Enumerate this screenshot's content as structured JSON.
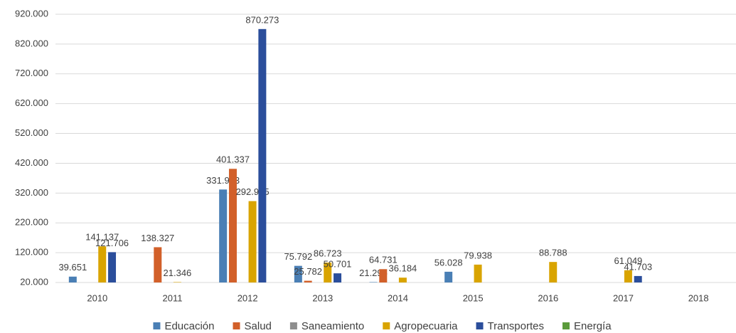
{
  "chart_data": {
    "type": "bar",
    "categories": [
      "2010",
      "2011",
      "2012",
      "2013",
      "2014",
      "2015",
      "2016",
      "2017",
      "2018"
    ],
    "series": [
      {
        "name": "Educación",
        "color": "#4a7fb5",
        "values": [
          39651,
          null,
          331903,
          75792,
          21295,
          56028,
          null,
          null,
          null
        ],
        "value_labels": [
          "39.651",
          null,
          "331.903",
          "75.792",
          "21.295",
          "56.028",
          null,
          null,
          null
        ]
      },
      {
        "name": "Salud",
        "color": "#d2602a",
        "values": [
          null,
          138327,
          401337,
          25782,
          64731,
          null,
          null,
          null,
          null
        ],
        "value_labels": [
          null,
          "138.327",
          "401.337",
          "25.782",
          "64.731",
          null,
          null,
          null,
          null
        ]
      },
      {
        "name": "Saneamiento",
        "color": "#8e8e8e",
        "values": [
          null,
          null,
          null,
          null,
          null,
          null,
          null,
          null,
          null
        ]
      },
      {
        "name": "Agropecuaria",
        "color": "#d9a400",
        "values": [
          141137,
          21346,
          292995,
          86723,
          36184,
          79938,
          88788,
          61049,
          null
        ],
        "value_labels": [
          "141.137",
          "21.346",
          "292.995",
          "86.723",
          "36.184",
          "79.938",
          "88.788",
          "61.049",
          null
        ]
      },
      {
        "name": "Transportes",
        "color": "#2b4e9b",
        "values": [
          121706,
          null,
          870273,
          50701,
          null,
          null,
          null,
          41703,
          null
        ],
        "value_labels": [
          "121.706",
          null,
          "870.273",
          "50.701",
          null,
          null,
          null,
          "41.703",
          null
        ]
      },
      {
        "name": "Energía",
        "color": "#5b9b3b",
        "values": [
          null,
          null,
          null,
          null,
          null,
          null,
          null,
          null,
          null
        ]
      }
    ],
    "ylim": [
      20000,
      920000
    ],
    "yticks": [
      {
        "value": 20000,
        "label": "20.000"
      },
      {
        "value": 120000,
        "label": "120.000"
      },
      {
        "value": 220000,
        "label": "220.000"
      },
      {
        "value": 320000,
        "label": "320.000"
      },
      {
        "value": 420000,
        "label": "420.000"
      },
      {
        "value": 520000,
        "label": "520.000"
      },
      {
        "value": 620000,
        "label": "620.000"
      },
      {
        "value": 720000,
        "label": "720.000"
      },
      {
        "value": 820000,
        "label": "820.000"
      },
      {
        "value": 920000,
        "label": "920.000"
      }
    ],
    "grid": true,
    "legend": "bottom"
  }
}
